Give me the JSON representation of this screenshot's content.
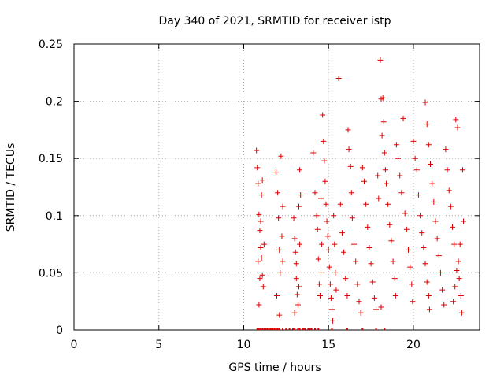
{
  "chart_data": {
    "type": "scatter",
    "title": "Day 340 of 2021, SRMTID for receiver istp",
    "xlabel": "GPS time / hours",
    "ylabel": "SRMTID / TECUs",
    "xlim": [
      0,
      23.9
    ],
    "ylim": [
      0,
      0.25
    ],
    "xticks": [
      0,
      5,
      10,
      15,
      20
    ],
    "xtick_labels": [
      "0",
      "5",
      "10",
      "15",
      "20"
    ],
    "yticks": [
      0,
      0.05,
      0.1,
      0.15,
      0.2,
      0.25
    ],
    "ytick_labels": [
      "0",
      "0.05",
      "0.1",
      "0.15",
      "0.2",
      "0.25"
    ],
    "grid": true,
    "marker": "plus",
    "colors": {
      "series": "#dd0000",
      "grid": "#aaaaaa",
      "axis": "#000000"
    },
    "series": [
      {
        "points": [
          [
            10.75,
            0.157
          ],
          [
            10.8,
            0.142
          ],
          [
            10.85,
            0.128
          ],
          [
            10.9,
            0.101
          ],
          [
            10.95,
            0.087
          ],
          [
            11.0,
            0.072
          ],
          [
            11.05,
            0.063
          ],
          [
            11.1,
            0.048
          ],
          [
            11.15,
            0.038
          ],
          [
            10.9,
            0.022
          ],
          [
            11.05,
            0.118
          ],
          [
            11.1,
            0.131
          ],
          [
            10.95,
            0.045
          ],
          [
            11.2,
            0.075
          ],
          [
            11.0,
            0.095
          ],
          [
            10.85,
            0.06
          ],
          [
            11.9,
            0.138
          ],
          [
            12.0,
            0.12
          ],
          [
            12.05,
            0.098
          ],
          [
            12.1,
            0.07
          ],
          [
            12.15,
            0.05
          ],
          [
            11.95,
            0.03
          ],
          [
            12.1,
            0.013
          ],
          [
            12.2,
            0.152
          ],
          [
            12.3,
            0.108
          ],
          [
            12.25,
            0.082
          ],
          [
            12.3,
            0.06
          ],
          [
            12.95,
            0.098
          ],
          [
            13.0,
            0.08
          ],
          [
            13.05,
            0.068
          ],
          [
            13.1,
            0.045
          ],
          [
            13.15,
            0.031
          ],
          [
            13.2,
            0.022
          ],
          [
            13.0,
            0.015
          ],
          [
            13.25,
            0.108
          ],
          [
            13.3,
            0.14
          ],
          [
            13.1,
            0.058
          ],
          [
            13.25,
            0.038
          ],
          [
            13.35,
            0.118
          ],
          [
            13.3,
            0.075
          ],
          [
            14.1,
            0.155
          ],
          [
            14.2,
            0.12
          ],
          [
            14.3,
            0.1
          ],
          [
            14.35,
            0.088
          ],
          [
            14.4,
            0.062
          ],
          [
            14.45,
            0.04
          ],
          [
            14.5,
            0.03
          ],
          [
            14.55,
            0.115
          ],
          [
            14.6,
            0.075
          ],
          [
            14.55,
            0.05
          ],
          [
            14.65,
            0.188
          ],
          [
            14.7,
            0.165
          ],
          [
            14.75,
            0.148
          ],
          [
            14.8,
            0.13
          ],
          [
            14.85,
            0.11
          ],
          [
            14.9,
            0.095
          ],
          [
            14.95,
            0.082
          ],
          [
            15.0,
            0.07
          ],
          [
            15.05,
            0.055
          ],
          [
            15.1,
            0.04
          ],
          [
            15.15,
            0.028
          ],
          [
            15.2,
            0.018
          ],
          [
            15.25,
            0.008
          ],
          [
            15.3,
            0.1
          ],
          [
            15.35,
            0.075
          ],
          [
            15.4,
            0.05
          ],
          [
            15.45,
            0.035
          ],
          [
            15.6,
            0.22
          ],
          [
            15.7,
            0.11
          ],
          [
            15.8,
            0.085
          ],
          [
            15.9,
            0.068
          ],
          [
            16.0,
            0.045
          ],
          [
            16.1,
            0.03
          ],
          [
            16.15,
            0.175
          ],
          [
            16.2,
            0.158
          ],
          [
            16.3,
            0.143
          ],
          [
            16.35,
            0.12
          ],
          [
            16.4,
            0.098
          ],
          [
            16.5,
            0.075
          ],
          [
            16.6,
            0.06
          ],
          [
            16.7,
            0.04
          ],
          [
            16.8,
            0.025
          ],
          [
            16.9,
            0.015
          ],
          [
            17.0,
            0.142
          ],
          [
            17.1,
            0.13
          ],
          [
            17.2,
            0.11
          ],
          [
            17.3,
            0.09
          ],
          [
            17.4,
            0.072
          ],
          [
            17.5,
            0.058
          ],
          [
            17.6,
            0.042
          ],
          [
            17.7,
            0.028
          ],
          [
            17.8,
            0.018
          ],
          [
            17.9,
            0.135
          ],
          [
            17.95,
            0.115
          ],
          [
            18.05,
            0.236
          ],
          [
            18.1,
            0.202
          ],
          [
            18.2,
            0.203
          ],
          [
            18.25,
            0.182
          ],
          [
            18.15,
            0.17
          ],
          [
            18.3,
            0.155
          ],
          [
            18.35,
            0.14
          ],
          [
            18.4,
            0.128
          ],
          [
            18.5,
            0.11
          ],
          [
            18.6,
            0.092
          ],
          [
            18.7,
            0.078
          ],
          [
            18.8,
            0.06
          ],
          [
            18.9,
            0.045
          ],
          [
            18.95,
            0.03
          ],
          [
            18.1,
            0.02
          ],
          [
            19.0,
            0.162
          ],
          [
            19.1,
            0.15
          ],
          [
            19.2,
            0.135
          ],
          [
            19.3,
            0.12
          ],
          [
            19.4,
            0.185
          ],
          [
            19.5,
            0.102
          ],
          [
            19.6,
            0.088
          ],
          [
            19.7,
            0.07
          ],
          [
            19.8,
            0.055
          ],
          [
            19.9,
            0.04
          ],
          [
            19.95,
            0.025
          ],
          [
            20.0,
            0.165
          ],
          [
            20.1,
            0.15
          ],
          [
            20.2,
            0.14
          ],
          [
            20.3,
            0.118
          ],
          [
            20.4,
            0.1
          ],
          [
            20.5,
            0.085
          ],
          [
            20.6,
            0.072
          ],
          [
            20.7,
            0.058
          ],
          [
            20.8,
            0.042
          ],
          [
            20.9,
            0.03
          ],
          [
            20.95,
            0.018
          ],
          [
            20.7,
            0.199
          ],
          [
            20.8,
            0.18
          ],
          [
            20.9,
            0.162
          ],
          [
            21.0,
            0.145
          ],
          [
            21.1,
            0.128
          ],
          [
            21.2,
            0.112
          ],
          [
            21.3,
            0.095
          ],
          [
            21.4,
            0.08
          ],
          [
            21.5,
            0.065
          ],
          [
            21.6,
            0.05
          ],
          [
            21.7,
            0.035
          ],
          [
            21.8,
            0.022
          ],
          [
            21.9,
            0.158
          ],
          [
            22.0,
            0.14
          ],
          [
            22.1,
            0.122
          ],
          [
            22.2,
            0.108
          ],
          [
            22.3,
            0.09
          ],
          [
            22.4,
            0.075
          ],
          [
            22.5,
            0.184
          ],
          [
            22.6,
            0.177
          ],
          [
            22.65,
            0.06
          ],
          [
            22.7,
            0.045
          ],
          [
            22.8,
            0.03
          ],
          [
            22.85,
            0.015
          ],
          [
            22.9,
            0.14
          ],
          [
            22.95,
            0.095
          ],
          [
            22.75,
            0.075
          ],
          [
            22.55,
            0.052
          ],
          [
            22.45,
            0.038
          ],
          [
            22.35,
            0.025
          ]
        ]
      }
    ]
  }
}
